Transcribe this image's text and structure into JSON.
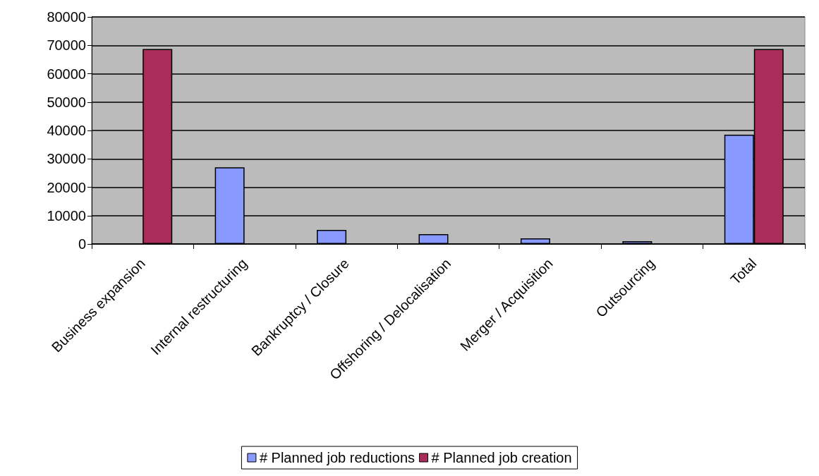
{
  "chart_data": {
    "type": "bar",
    "categories": [
      "Business expansion",
      "Internal restructuring",
      "Bankruptcy / Closure",
      "Offshoring / Delocalisation",
      "Merger / Acquisition",
      "Outsourcing",
      "Total"
    ],
    "series": [
      {
        "name": "# Planned job reductions",
        "color": "#8899ff",
        "values": [
          null,
          27000,
          5000,
          3500,
          2000,
          1000,
          38500
        ]
      },
      {
        "name": "# Planned job creation",
        "color": "#a92d5a",
        "values": [
          68700,
          null,
          null,
          null,
          null,
          null,
          68700
        ]
      }
    ],
    "ylim": [
      0,
      80000
    ],
    "yticks": [
      0,
      10000,
      20000,
      30000,
      40000,
      50000,
      60000,
      70000,
      80000
    ],
    "grid": "y",
    "legend": "bottom"
  }
}
